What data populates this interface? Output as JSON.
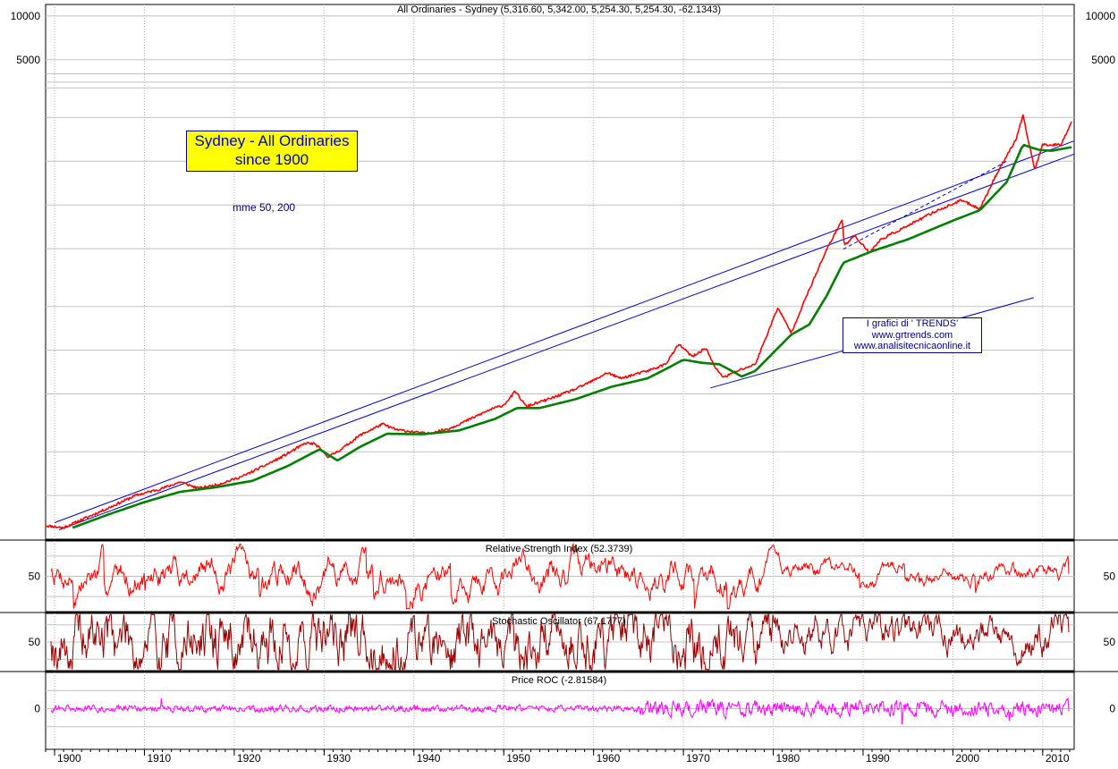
{
  "chart_data": [
    {
      "type": "line",
      "panel": "price",
      "title": "All Ordinaries - Sydney (5,316.60, 5,342.00, 5,254.30, 5,254.30, -62.1343)",
      "annotation_box": [
        "Sydney - All Ordinaries",
        "since 1900"
      ],
      "ma_note": "mme 50, 200",
      "credits": [
        "I grafici di ' TRENDS'",
        "www.grtrends.com",
        "www.analisitecnicaonline.it"
      ],
      "y_scale": "log",
      "ylim": [
        2.5,
        12000
      ],
      "yticks": [
        10000,
        5000
      ],
      "xlim": [
        1899,
        2013.5
      ],
      "grid": true,
      "series": [
        {
          "name": "",
          "color": "#ff0000",
          "x": [
            1899,
            1901,
            1903,
            1906,
            1909,
            1912,
            1914,
            1916,
            1918,
            1921,
            1925,
            1928,
            1929,
            1930.5,
            1932,
            1934,
            1936.5,
            1938,
            1941.5,
            1944,
            1946,
            1948.5,
            1950,
            1951.3,
            1952.5,
            1955,
            1958,
            1960,
            1961.5,
            1963,
            1966,
            1968,
            1969.5,
            1971,
            1972.5,
            1973.5,
            1974.5,
            1976,
            1978,
            1980.5,
            1982,
            1984,
            1986,
            1987.7,
            1987.9,
            1989,
            1990.7,
            1992,
            1995,
            1998,
            2001,
            2003,
            2005,
            2007,
            2007.8,
            2009.1,
            2010,
            2012,
            2013.2
          ],
          "y": [
            3.1,
            3.0,
            3.4,
            4.1,
            5.0,
            5.6,
            6.2,
            5.6,
            5.9,
            6.8,
            9.0,
            11.5,
            11.3,
            9.2,
            10.5,
            13.0,
            15.5,
            14.2,
            13.3,
            14.5,
            16.5,
            19.5,
            21.0,
            26.0,
            20.5,
            23.0,
            27.0,
            31.0,
            35.0,
            32.0,
            36.0,
            40.0,
            55.0,
            45.0,
            52.0,
            38.0,
            32.5,
            36.0,
            40.0,
            98.0,
            66.0,
            130.0,
            250.0,
            400.0,
            260.0,
            310.0,
            235.0,
            290.0,
            360.0,
            450.0,
            540.0,
            470.0,
            850.0,
            1400.0,
            2050.0,
            880.0,
            1300.0,
            1300.0,
            1850.0
          ]
        },
        {
          "name": "",
          "color": "#008000",
          "x": [
            1902,
            1906,
            1910,
            1914,
            1918,
            1922,
            1926,
            1929.5,
            1931.5,
            1934,
            1937,
            1941,
            1945,
            1949,
            1951.5,
            1954,
            1958,
            1962,
            1966,
            1968,
            1970,
            1972,
            1974,
            1976.5,
            1978,
            1980,
            1982,
            1984,
            1986,
            1987.8,
            1991,
            1995,
            2000,
            2003,
            2006,
            2007.8,
            2009.5,
            2011,
            2013.2
          ],
          "y": [
            3.0,
            3.7,
            4.5,
            5.3,
            5.7,
            6.3,
            8.0,
            10.4,
            8.7,
            10.8,
            13.3,
            13.2,
            14.0,
            16.8,
            20.0,
            20.0,
            23.0,
            28.0,
            32.0,
            37.0,
            43.0,
            41.0,
            40.0,
            33.0,
            36.0,
            48.0,
            64.0,
            75.0,
            120.0,
            200.0,
            240.0,
            290.0,
            390.0,
            460.0,
            720.0,
            1300.0,
            1200.0,
            1180.0,
            1250.0
          ]
        }
      ],
      "trendlines": [
        {
          "color": "#0000cc",
          "dashed": false,
          "x": [
            1900,
            2013.5
          ],
          "y": [
            3.25,
            1380.0
          ]
        },
        {
          "color": "#0000cc",
          "dashed": false,
          "x": [
            1900.5,
            2013.5
          ],
          "y": [
            2.9,
            1120.0
          ]
        },
        {
          "color": "#0000cc",
          "dashed": false,
          "x": [
            1973,
            2009
          ],
          "y": [
            27.5,
            115.0
          ]
        },
        {
          "color": "#0000cc",
          "dashed": true,
          "x": [
            1987.8,
            2006
          ],
          "y": [
            248.0,
            1000.0
          ]
        }
      ]
    },
    {
      "type": "line",
      "panel": "rsi",
      "title": "Relative Strength Index (52.3739)",
      "ylim": [
        15,
        85
      ],
      "yticks": [
        50
      ],
      "xlim": [
        1899,
        2013.5
      ],
      "seed": 7,
      "series": [
        {
          "name": "",
          "color": "#ff0000",
          "value": 52.3739
        }
      ]
    },
    {
      "type": "line",
      "panel": "stochastic",
      "title": "Stochastic Oscillator (67.1777)",
      "ylim": [
        0,
        100
      ],
      "yticks": [
        50
      ],
      "xlim": [
        1899,
        2013.5
      ],
      "seed": 19,
      "series": [
        {
          "name": "",
          "color": "#990000",
          "value": 67.1777
        }
      ]
    },
    {
      "type": "line",
      "panel": "roc",
      "title": "Price ROC (-2.81584)",
      "ylim": [
        -45,
        40
      ],
      "yticks": [
        0
      ],
      "xlim": [
        1899,
        2013.5
      ],
      "seed": 31,
      "series": [
        {
          "name": "",
          "color": "#ff00ff",
          "value": -2.81584
        }
      ]
    }
  ],
  "x_axis": {
    "tick_labels": [
      "1900",
      "1910",
      "1920",
      "1930",
      "1940",
      "1950",
      "1960",
      "1970",
      "1980",
      "1990",
      "2000",
      "2010"
    ]
  }
}
